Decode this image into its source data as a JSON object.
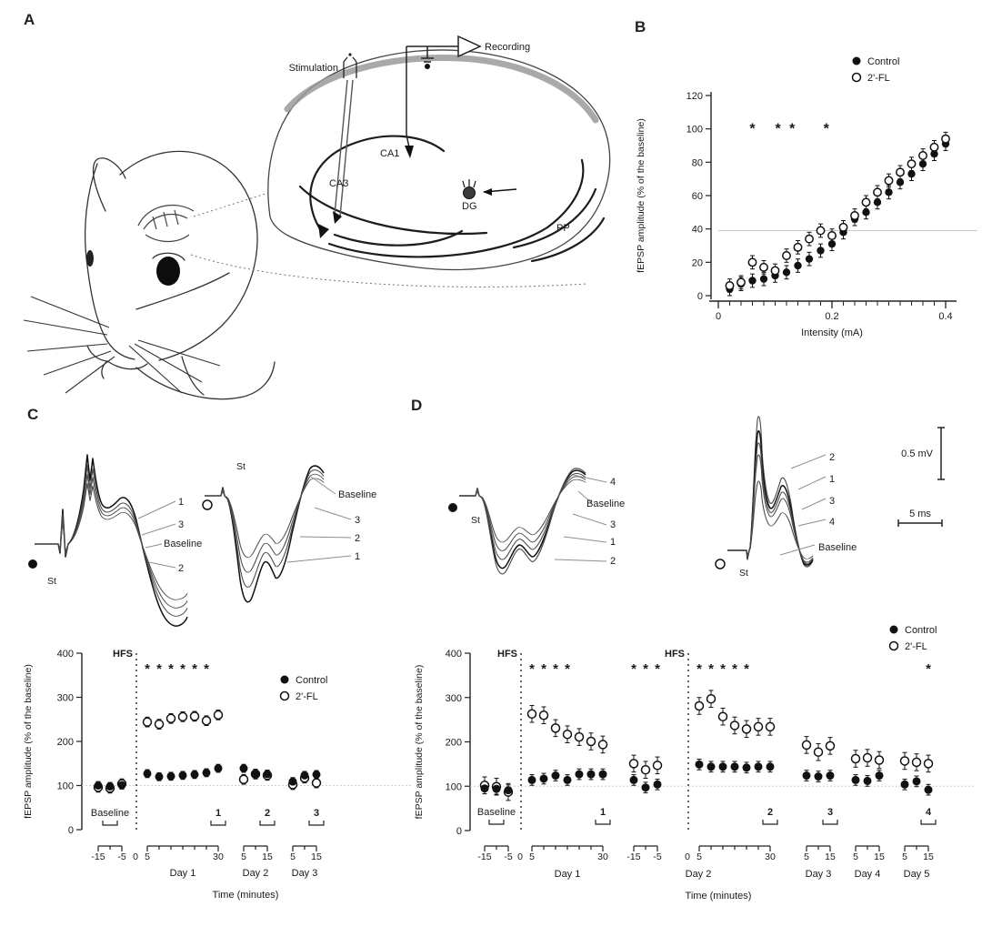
{
  "figure": {
    "ink": "#1a1a1a",
    "background": "#ffffff",
    "marker_colors": {
      "control": "#111111",
      "fl": "#ffffff"
    }
  },
  "panelA": {
    "label": "A",
    "stimulation_label": "Stimulation",
    "recording_label": "Recording",
    "regions": {
      "ca1": "CA1",
      "ca3": "CA3",
      "dg": "DG",
      "pp": "PP"
    }
  },
  "panelB": {
    "label": "B"
  },
  "panelC": {
    "label": "C",
    "left_trace": {
      "marker": "filled",
      "st": "St",
      "labels": [
        "1",
        "3",
        "Baseline",
        "2"
      ]
    },
    "right_trace": {
      "marker": "open",
      "st": "St",
      "labels": [
        "Baseline",
        "3",
        "2",
        "1"
      ]
    }
  },
  "panelD": {
    "label": "D",
    "left_trace": {
      "marker": "filled",
      "st": "St",
      "labels": [
        "4",
        "Baseline",
        "3",
        "1",
        "2"
      ]
    },
    "right_trace": {
      "marker": "open",
      "st": "St",
      "labels": [
        "2",
        "1",
        "3",
        "4",
        "Baseline"
      ]
    },
    "scale_bar": {
      "vertical": "0.5 mV",
      "horizontal": "5 ms"
    }
  },
  "chart_data": [
    {
      "panel": "B",
      "type": "scatter",
      "title": "",
      "xlabel": "Intensity (mA)",
      "ylabel": "fEPSP amplitude (% of the baseline)",
      "xlim": [
        0,
        0.4
      ],
      "ylim": [
        0,
        120
      ],
      "yticks": [
        0,
        20,
        40,
        60,
        80,
        100,
        120
      ],
      "xticks": [
        {
          "v": 0,
          "label": "0"
        },
        {
          "v": 0.2,
          "label": "0.2"
        },
        {
          "v": 0.4,
          "label": "0.4"
        }
      ],
      "xtick_minor_step": 0.02,
      "reference_line_y": 39,
      "significance": {
        "symbol": "*",
        "y": 100,
        "x": [
          0.06,
          0.105,
          0.13,
          0.19
        ]
      },
      "legend": [
        {
          "name": "Control",
          "marker": "filled"
        },
        {
          "name": "2'-FL",
          "marker": "open"
        }
      ],
      "x": [
        0.02,
        0.04,
        0.06,
        0.08,
        0.1,
        0.12,
        0.14,
        0.16,
        0.18,
        0.2,
        0.22,
        0.24,
        0.26,
        0.28,
        0.3,
        0.32,
        0.34,
        0.36,
        0.38,
        0.4
      ],
      "series": [
        {
          "name": "Control",
          "marker": "filled",
          "err": 4,
          "values": [
            4,
            7,
            9,
            10,
            12,
            14,
            18,
            22,
            27,
            31,
            38,
            46,
            50,
            56,
            62,
            68,
            73,
            79,
            85,
            91
          ]
        },
        {
          "name": "2'-FL",
          "marker": "open",
          "err": 4,
          "values": [
            6,
            8,
            20,
            17,
            15,
            24,
            29,
            34,
            39,
            36,
            41,
            48,
            56,
            62,
            69,
            74,
            79,
            84,
            89,
            94
          ]
        }
      ]
    },
    {
      "panel": "C",
      "type": "timecourse",
      "xlabel": "Time (minutes)",
      "ylabel": "fEPSP amplitude (% of the baseline)",
      "ylim": [
        0,
        400
      ],
      "yticks": [
        0,
        100,
        200,
        300,
        400
      ],
      "baseline_line_y": 100,
      "hfs_label": "HFS",
      "zero_label": "0",
      "significance_symbol": "*",
      "sig_y": 355,
      "legend": [
        {
          "name": "Control",
          "marker": "filled"
        },
        {
          "name": "2'-FL",
          "marker": "open"
        }
      ],
      "err": {
        "control": 9,
        "fl": 11
      },
      "groups": [
        {
          "name": "baseline",
          "day_label": "",
          "ticks": [
            "-15",
            "-5"
          ],
          "bracket_label": "Baseline",
          "hfs_before": false,
          "control": [
            100,
            98,
            101
          ],
          "fl": [
            96,
            94,
            104
          ],
          "asterisks": []
        },
        {
          "name": "day1",
          "day_label": "Day 1",
          "ticks": [
            "5",
            "30"
          ],
          "bracket_label": "1",
          "hfs_before": true,
          "control": [
            127,
            120,
            121,
            123,
            125,
            129,
            139
          ],
          "fl": [
            244,
            239,
            252,
            256,
            257,
            247,
            260
          ],
          "asterisks": [
            0,
            1,
            2,
            3,
            4,
            5
          ]
        },
        {
          "name": "day2",
          "day_label": "Day 2",
          "ticks": [
            "5",
            "15"
          ],
          "bracket_label": "2",
          "hfs_before": false,
          "control": [
            139,
            127,
            126
          ],
          "fl": [
            114,
            126,
            123
          ],
          "asterisks": []
        },
        {
          "name": "day3",
          "day_label": "Day 3",
          "ticks": [
            "5",
            "15"
          ],
          "bracket_label": "3",
          "hfs_before": false,
          "control": [
            109,
            123,
            125
          ],
          "fl": [
            102,
            117,
            106
          ],
          "asterisks": []
        }
      ]
    },
    {
      "panel": "D",
      "type": "timecourse",
      "xlabel": "Time (minutes)",
      "ylabel": "fEPSP amplitude (% of the baseline)",
      "ylim": [
        0,
        400
      ],
      "yticks": [
        0,
        100,
        200,
        300,
        400
      ],
      "baseline_line_y": 100,
      "hfs_label": "HFS",
      "zero_label": "0",
      "significance_symbol": "*",
      "sig_y": 355,
      "legend": [
        {
          "name": "Control",
          "marker": "filled"
        },
        {
          "name": "2'-FL",
          "marker": "open"
        }
      ],
      "err": {
        "control": 12,
        "fl": 19
      },
      "groups": [
        {
          "name": "baseline",
          "day_label": "",
          "ticks": [
            "-15",
            "-5"
          ],
          "bracket_label": "Baseline",
          "hfs_before": false,
          "control": [
            95,
            94,
            91
          ],
          "fl": [
            102,
            99,
            87
          ],
          "asterisks": []
        },
        {
          "name": "day1",
          "day_label": "Day 1",
          "ticks": [
            "5",
            "30"
          ],
          "bracket_label": "1",
          "hfs_before": true,
          "control": [
            114,
            117,
            124,
            114,
            127,
            127,
            127
          ],
          "fl": [
            263,
            260,
            231,
            217,
            211,
            201,
            194
          ],
          "asterisks": [
            0,
            1,
            2,
            3
          ]
        },
        {
          "name": "day2pre",
          "day_label": "",
          "ticks": [
            "-15",
            "-5"
          ],
          "bracket_label": "",
          "hfs_before": false,
          "control": [
            114,
            97,
            104
          ],
          "fl": [
            151,
            137,
            147
          ],
          "asterisks": [
            0,
            1,
            2
          ]
        },
        {
          "name": "day2post",
          "day_label": "Day 2",
          "ticks": [
            "5",
            "30"
          ],
          "bracket_label": "2",
          "hfs_before": true,
          "control": [
            149,
            144,
            144,
            144,
            142,
            144,
            144
          ],
          "fl": [
            281,
            297,
            257,
            237,
            229,
            234,
            234
          ],
          "asterisks": [
            0,
            1,
            2,
            3,
            4
          ]
        },
        {
          "name": "day3",
          "day_label": "Day 3",
          "ticks": [
            "5",
            "15"
          ],
          "bracket_label": "3",
          "hfs_before": false,
          "control": [
            124,
            122,
            124
          ],
          "fl": [
            193,
            177,
            191
          ],
          "asterisks": []
        },
        {
          "name": "day4",
          "day_label": "Day 4",
          "ticks": [
            "5",
            "15"
          ],
          "bracket_label": "",
          "hfs_before": false,
          "control": [
            114,
            112,
            124
          ],
          "fl": [
            162,
            164,
            159
          ],
          "asterisks": []
        },
        {
          "name": "day5",
          "day_label": "Day 5",
          "ticks": [
            "5",
            "15"
          ],
          "bracket_label": "4",
          "hfs_before": false,
          "control": [
            104,
            111,
            92
          ],
          "fl": [
            157,
            154,
            151
          ],
          "asterisks": [
            2
          ]
        }
      ]
    }
  ]
}
